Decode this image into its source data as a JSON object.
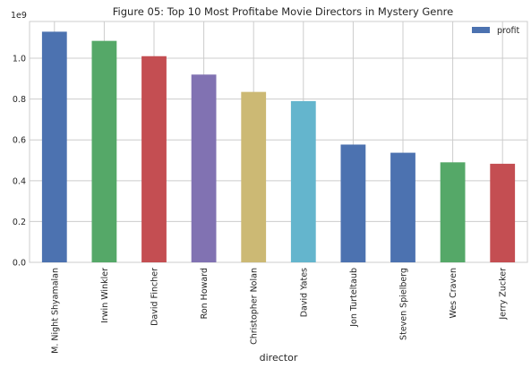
{
  "chart_data": {
    "type": "bar",
    "title": "Figure 05: Top 10 Most Profitabe Movie Directors in Mystery Genre",
    "xlabel": "director",
    "ylabel": "",
    "y_scale_label": "1e9",
    "ylim": [
      0,
      1.18
    ],
    "yticks": [
      "0.0",
      "0.2",
      "0.4",
      "0.6",
      "0.8",
      "1.0"
    ],
    "ytick_values": [
      0.0,
      0.2,
      0.4,
      0.6,
      0.8,
      1.0
    ],
    "grid": true,
    "legend_position": "top-right",
    "series": [
      {
        "name": "profit",
        "legend_color": "#4c72b0",
        "values": [
          1.13,
          1.085,
          1.01,
          0.92,
          0.835,
          0.79,
          0.577,
          0.537,
          0.49,
          0.483
        ]
      }
    ],
    "categories": [
      "M. Night Shyamalan",
      "Irwin Winkler",
      "David Fincher",
      "Ron Howard",
      "Christopher Nolan",
      "David Yates",
      "Jon Turteltaub",
      "Steven Spielberg",
      "Wes Craven",
      "Jerry Zucker"
    ],
    "bar_colors": [
      "#4c72b0",
      "#55a868",
      "#c44e52",
      "#8172b2",
      "#ccb974",
      "#64b5cd",
      "#4c72b0",
      "#4c72b0",
      "#55a868",
      "#c44e52"
    ]
  }
}
